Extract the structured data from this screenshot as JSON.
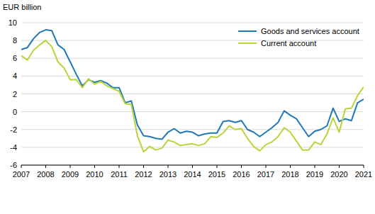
{
  "chart_data": {
    "type": "line",
    "y_label": "EUR billion",
    "x": [
      2007,
      2007.25,
      2007.5,
      2007.75,
      2008,
      2008.25,
      2008.5,
      2008.75,
      2009,
      2009.25,
      2009.5,
      2009.75,
      2010,
      2010.25,
      2010.5,
      2010.75,
      2011,
      2011.25,
      2011.5,
      2011.75,
      2012,
      2012.25,
      2012.5,
      2012.75,
      2013,
      2013.25,
      2013.5,
      2013.75,
      2014,
      2014.25,
      2014.5,
      2014.75,
      2015,
      2015.25,
      2015.5,
      2015.75,
      2016,
      2016.25,
      2016.5,
      2016.75,
      2017,
      2017.25,
      2017.5,
      2017.75,
      2018,
      2018.25,
      2018.5,
      2018.75,
      2019,
      2019.25,
      2019.5,
      2019.75,
      2020,
      2020.25,
      2020.5,
      2020.75,
      2021
    ],
    "series": [
      {
        "name": "Goods and services account",
        "color": "#1f78b8",
        "values": [
          7.0,
          7.2,
          8.2,
          8.9,
          9.2,
          9.1,
          7.5,
          7.0,
          5.6,
          4.2,
          2.9,
          3.6,
          3.3,
          3.5,
          3.2,
          2.7,
          2.7,
          1.0,
          1.2,
          -1.5,
          -2.7,
          -2.8,
          -3.0,
          -3.1,
          -2.3,
          -1.9,
          -2.4,
          -2.2,
          -2.3,
          -2.7,
          -2.5,
          -2.4,
          -2.4,
          -1.1,
          -1.0,
          -1.2,
          -1.0,
          -2.0,
          -2.3,
          -2.8,
          -2.3,
          -1.8,
          -1.2,
          0.1,
          -0.4,
          -0.8,
          -1.8,
          -2.8,
          -2.2,
          -2.0,
          -1.6,
          0.4,
          -1.1,
          -0.8,
          -1.0,
          1.0,
          1.4
        ]
      },
      {
        "name": "Current account",
        "color": "#b8d43a",
        "values": [
          6.3,
          5.8,
          6.9,
          7.5,
          8.0,
          7.3,
          5.6,
          4.9,
          3.6,
          3.6,
          2.7,
          3.7,
          3.1,
          3.4,
          2.9,
          2.6,
          2.3,
          0.9,
          0.8,
          -2.7,
          -4.5,
          -3.9,
          -4.3,
          -4.1,
          -3.2,
          -3.4,
          -3.8,
          -3.7,
          -3.6,
          -3.8,
          -3.6,
          -2.8,
          -2.9,
          -2.4,
          -1.6,
          -2.0,
          -1.9,
          -3.0,
          -3.9,
          -4.4,
          -3.7,
          -3.4,
          -2.8,
          -1.8,
          -2.3,
          -3.3,
          -4.3,
          -4.3,
          -3.4,
          -3.7,
          -2.5,
          -0.7,
          -2.3,
          0.3,
          0.4,
          1.8,
          2.8
        ]
      }
    ],
    "xlim": [
      2007,
      2021
    ],
    "xticks": [
      2007,
      2008,
      2009,
      2010,
      2011,
      2012,
      2013,
      2014,
      2015,
      2016,
      2017,
      2018,
      2019,
      2020,
      2021
    ],
    "ylim": [
      -6,
      10
    ],
    "yticks": [
      -6,
      -4,
      -2,
      0,
      2,
      4,
      6,
      8,
      10
    ],
    "grid": true,
    "legend": "upper right"
  }
}
